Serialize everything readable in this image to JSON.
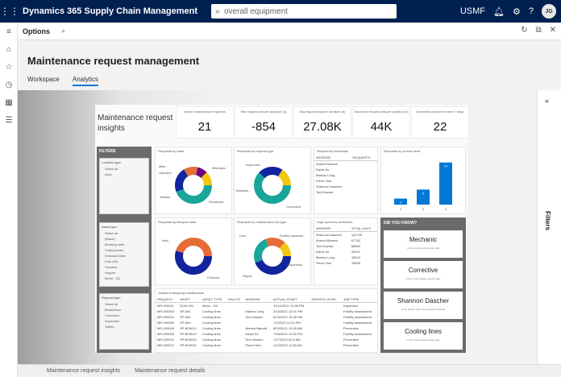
{
  "topbar": {
    "app_title": "Dynamics 365 Supply Chain Management",
    "search_placeholder": "overall equipment",
    "company": "USMF",
    "avatar_initials": "JG"
  },
  "actionbar": {
    "options": "Options"
  },
  "page": {
    "title": "Maintenance request management",
    "tabs": [
      "Workspace",
      "Analytics"
    ],
    "active_tab": "Analytics"
  },
  "filters_pane": {
    "label": "Filters"
  },
  "report": {
    "title": "Maintenance request insights",
    "kpis": [
      {
        "label": "Active maintenance requests",
        "value": "21"
      },
      {
        "label": "Min request closure duration (d)",
        "value": "-854"
      },
      {
        "label": "Avg request closure duration (d)",
        "value": "27.08K"
      },
      {
        "label": "Maximum request closure duration (d)",
        "value": "44K"
      },
      {
        "label": "Downtime planned in next 7 days",
        "value": "22"
      }
    ],
    "filters_header": "FILTERS",
    "slicers": [
      {
        "title": "Location type",
        "items": [
          "Select all",
          "Area"
        ]
      },
      {
        "title": "Asset type",
        "items": [
          "Select all",
          "(Blank)",
          "Bending units",
          "Cooling lines",
          "Extrusion lines",
          "Fork Lifts",
          "Gearbox",
          "Hopper",
          "Motor - DC"
        ]
      },
      {
        "title": "Request type",
        "items": [
          "Select all",
          "Breakdown",
          "Corrective",
          "Inspection",
          "Safety"
        ]
      }
    ],
    "visuals": {
      "by_trade": {
        "title": "Requests by trade",
        "labels": [
          "Mise...",
          "Operator",
          "Mechanic",
          "Blaster",
          "Electrician"
        ]
      },
      "by_type": {
        "title": "Requests by request type",
        "labels": [
          "Inspection",
          "Breakdo...",
          "Corrective"
        ]
      },
      "by_technician": {
        "title": "Request by technician",
        "headers": [
          "WORKER",
          "REQUESTS"
        ],
        "rows": [
          "Ahmed Barnett",
          "David So",
          "Markus Long",
          "Pierre Hed",
          "Shannon Dascher",
          "Ted Howard"
        ]
      },
      "by_service_level": {
        "title": "Requests by service level"
      },
      "by_lifecycle": {
        "title": "Requests by lifecycle state",
        "labels": [
          "New",
          "Finished"
        ]
      },
      "by_job_type": {
        "title": "Requests by maintenance job type",
        "labels": [
          "Lubr...",
          "Facility assessm...",
          "Repair",
          "Inspection"
        ]
      },
      "days_spent": {
        "title": "Days spent by technician",
        "headers": [
          "WORKER",
          "TOTAL DAYS"
        ],
        "rows": [
          [
            "Shannon Dascher",
            "122739"
          ],
          [
            "Ahmed Barnett",
            "67762"
          ],
          [
            "Ted Howard",
            "68653"
          ],
          [
            "David So",
            "43542"
          ],
          [
            "Markus Long",
            "40542"
          ],
          [
            "Pierre Hed",
            "33895"
          ]
        ]
      },
      "assets": {
        "title": "Assets undergoing maintenance",
        "headers": [
          "REQUEST",
          "ASSET",
          "ASSET TYPE",
          "FAULTS",
          "WORKER",
          "ACTUAL START",
          "SERVICE LEVEL",
          "JOB TYPE"
        ],
        "rows": [
          [
            "MR-000011",
            "DCM-201",
            "Motor - DC",
            "",
            "",
            "11/14/2021 12:28 PM",
            "",
            "Inspection"
          ],
          [
            "MR-000003",
            "SP-600",
            "Cooling lines",
            "",
            "Markus Long",
            "2/16/2021 12:01 PM",
            "",
            "Facility assessment"
          ],
          [
            "MR-000004",
            "SP-600",
            "Cooling lines",
            "",
            "Ted Howard",
            "6/24/2022 10:46 PM",
            "",
            "Facility assessment"
          ],
          [
            "MR-000005",
            "SP-600",
            "Cooling lines",
            "",
            "",
            "7/1/2022 12:20 PM",
            "",
            "Facility assessment"
          ],
          [
            "MR-000008",
            "SP-BOW10",
            "Cooling lines",
            "",
            "Ahmed Barnett",
            "8/10/2021 12:00 AM",
            "",
            "Preventive"
          ],
          [
            "MR-000009",
            "SP-BOW10",
            "Cooling lines",
            "",
            "David So",
            "7/18/2022 11:05 PM",
            "",
            "Facility assessment"
          ],
          [
            "MR-000010",
            "SP-BOW10",
            "Cooling lines",
            "",
            "Ted Howard",
            "7/27/2022 8:24 AM",
            "",
            "Preventive"
          ],
          [
            "MR-000012",
            "SP-BOW21",
            "Cooling lines",
            "",
            "Pierre Hed",
            "1/12/2022 11:26 AM",
            "",
            "Preventive"
          ]
        ]
      }
    },
    "service_level_chart": {
      "type": "bar",
      "categories": [
        "2",
        "3",
        "4"
      ],
      "values": [
        2,
        5,
        14
      ]
    },
    "did_you_know": {
      "header": "DID YOU KNOW?",
      "cards": [
        {
          "big": "Mechanic",
          "small": "is the most required trade skill"
        },
        {
          "big": "Corrective",
          "small": "is the most created request type"
        },
        {
          "big": "Shannon Dascher",
          "small": "is the worker with most request workload"
        },
        {
          "big": "Cooling lines",
          "small": "is the most repaired asset type"
        }
      ]
    }
  },
  "bottom_tabs": [
    "Maintenance request insights",
    "Maintenance request details"
  ],
  "colors": {
    "topbar": "#002050",
    "accent": "#0078d4",
    "teal": "#1aa59a",
    "yellow": "#f2c80f",
    "navy": "#12239e",
    "orange": "#e66c37"
  }
}
